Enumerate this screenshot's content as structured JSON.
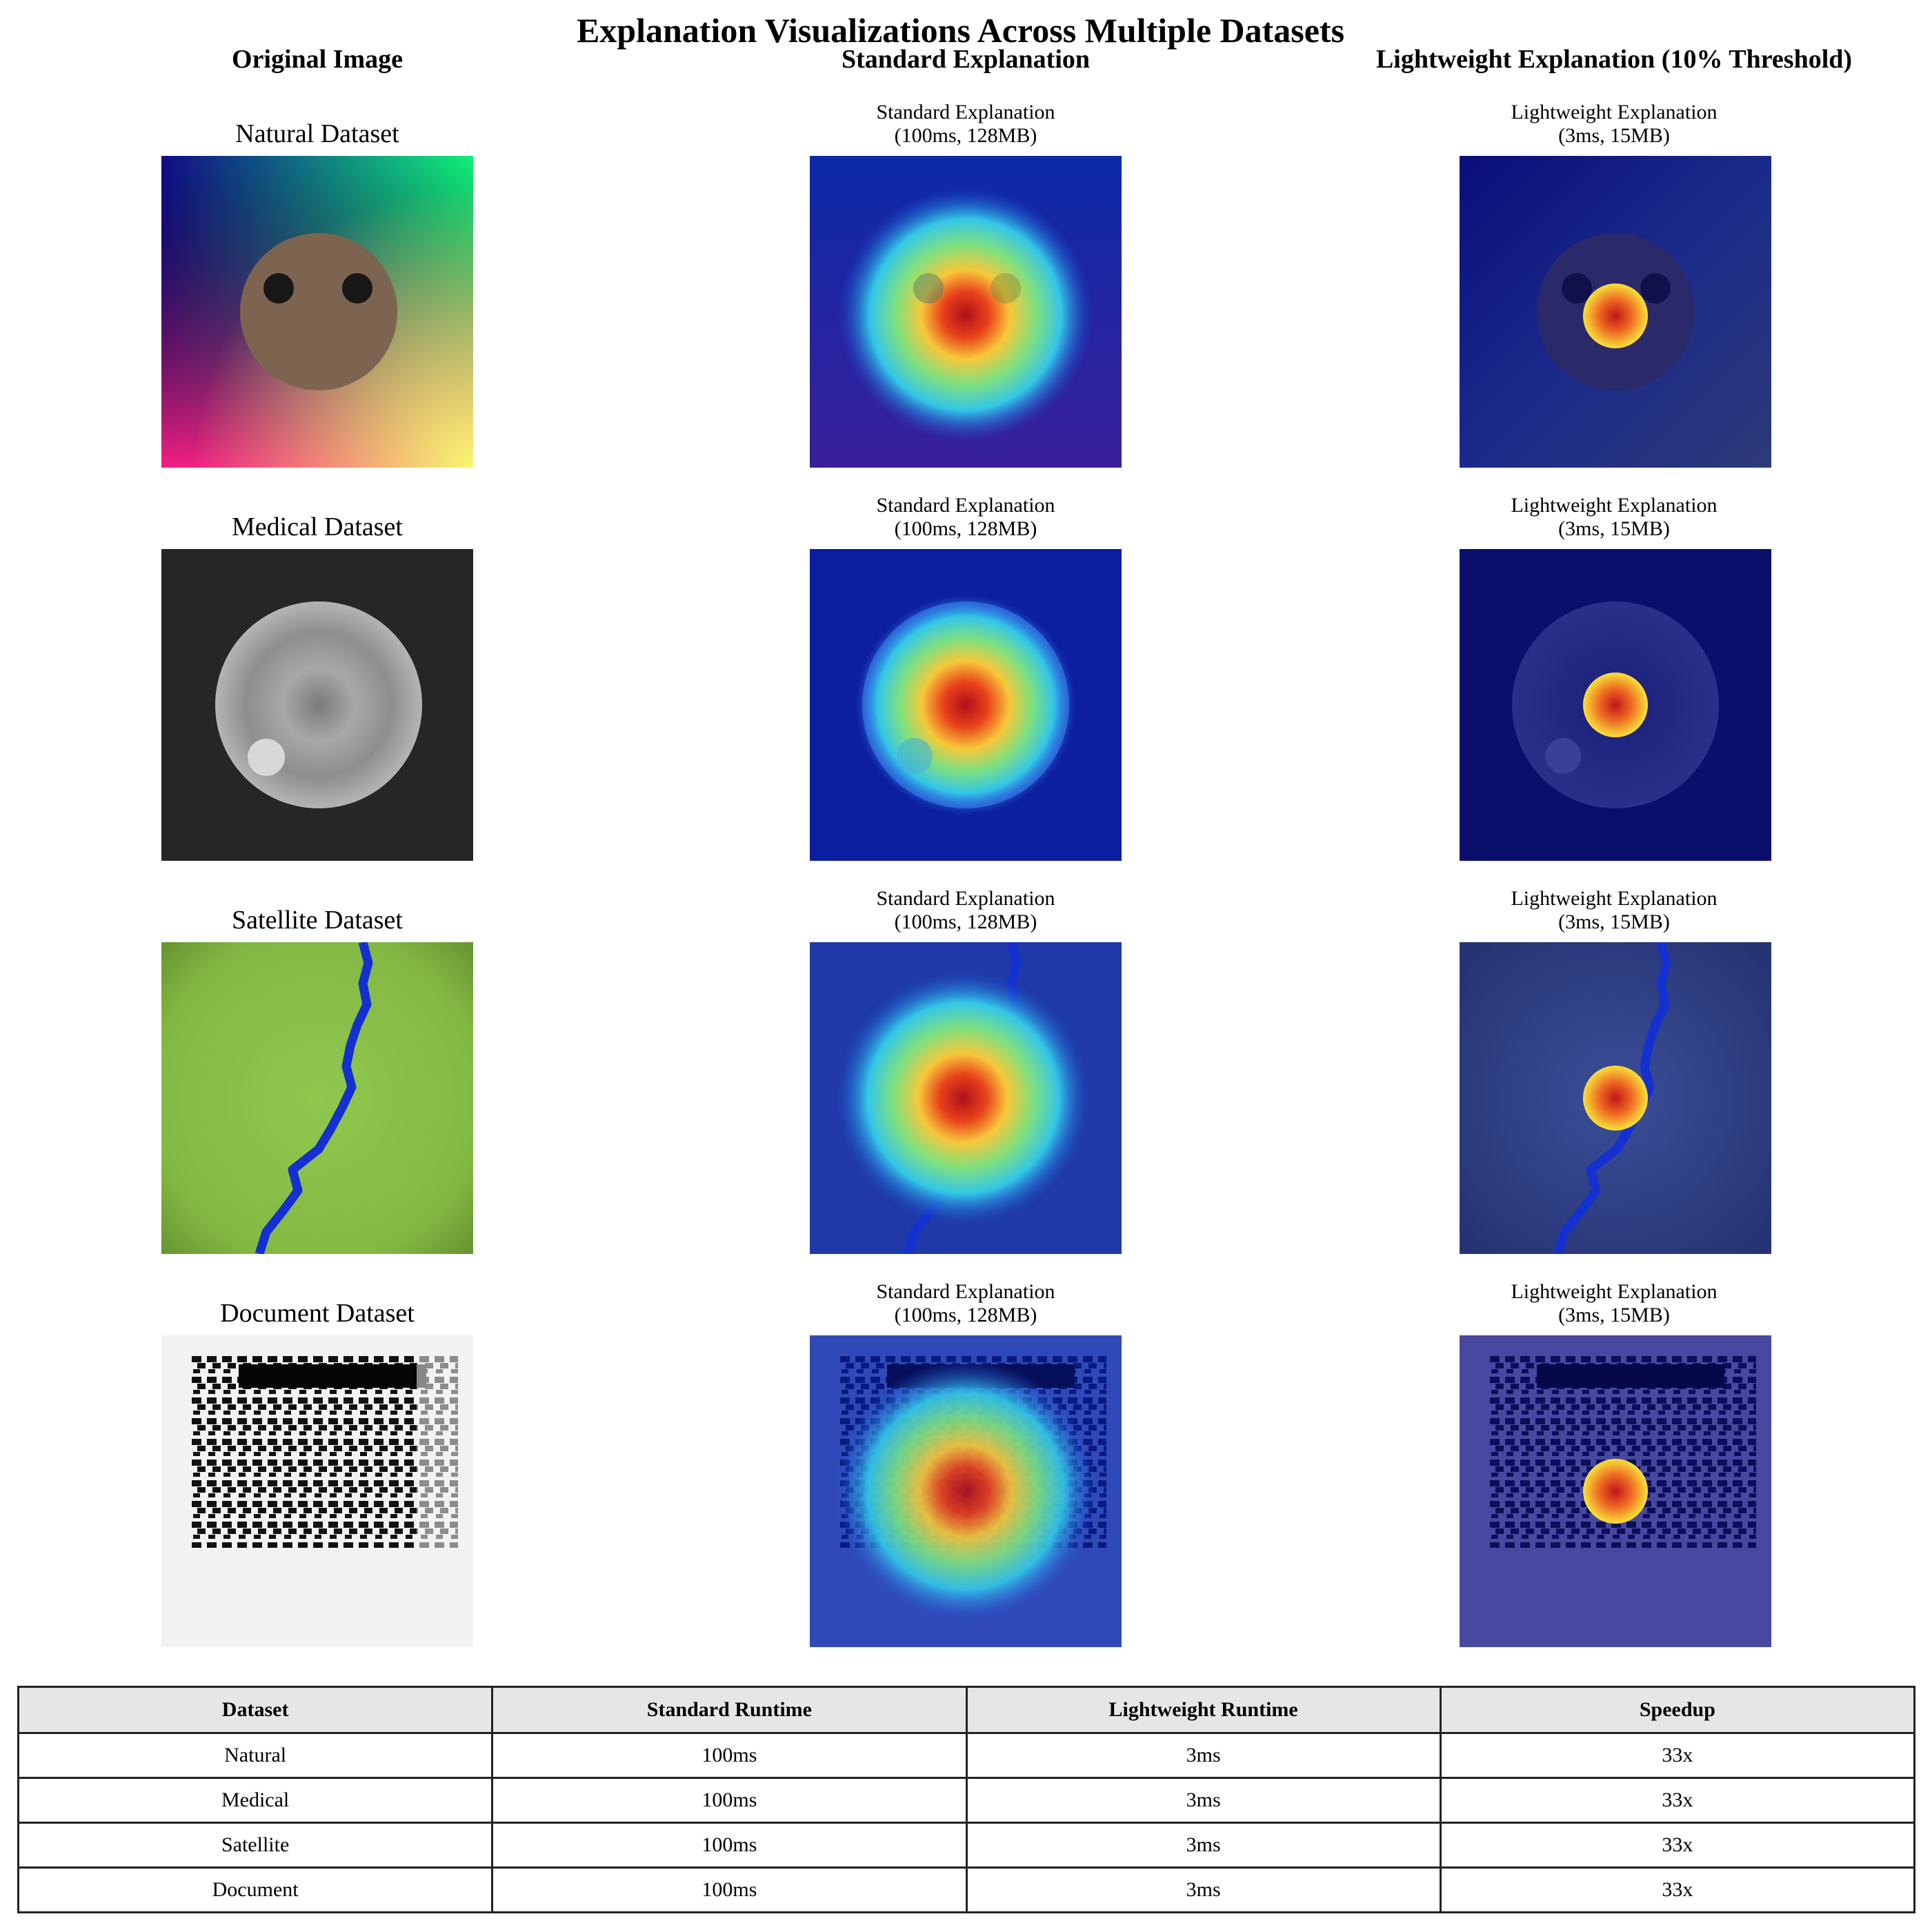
{
  "title": "Explanation Visualizations Across Multiple Datasets",
  "columns": [
    "Original Image",
    "Standard Explanation",
    "Lightweight Explanation (10% Threshold)"
  ],
  "rows": [
    {
      "label": "Natural Dataset",
      "std_line1": "Standard Explanation",
      "std_line2": "(100ms, 128MB)",
      "lw_line1": "Lightweight Explanation",
      "lw_line2": "(3ms, 15MB)"
    },
    {
      "label": "Medical Dataset",
      "std_line1": "Standard Explanation",
      "std_line2": "(100ms, 128MB)",
      "lw_line1": "Lightweight Explanation",
      "lw_line2": "(3ms, 15MB)"
    },
    {
      "label": "Satellite Dataset",
      "std_line1": "Standard Explanation",
      "std_line2": "(100ms, 128MB)",
      "lw_line1": "Lightweight Explanation",
      "lw_line2": "(3ms, 15MB)"
    },
    {
      "label": "Document Dataset",
      "std_line1": "Standard Explanation",
      "std_line2": "(100ms, 128MB)",
      "lw_line1": "Lightweight Explanation",
      "lw_line2": "(3ms, 15MB)"
    }
  ],
  "colors": {
    "heat_red": "#b0101a",
    "heat_yellow": "#f7e13a",
    "jet_blue": "#0a1fa0",
    "cyan": "#33d6e8",
    "navy": "#0a0f6b",
    "river_blue": "#1530d0",
    "grass": "#8ec34a"
  },
  "chart_data": {
    "type": "table",
    "headers": [
      "Dataset",
      "Standard Runtime",
      "Lightweight Runtime",
      "Speedup"
    ],
    "rows": [
      [
        "Natural",
        "100ms",
        "3ms",
        "33x"
      ],
      [
        "Medical",
        "100ms",
        "3ms",
        "33x"
      ],
      [
        "Satellite",
        "100ms",
        "3ms",
        "33x"
      ],
      [
        "Document",
        "100ms",
        "3ms",
        "33x"
      ]
    ]
  }
}
